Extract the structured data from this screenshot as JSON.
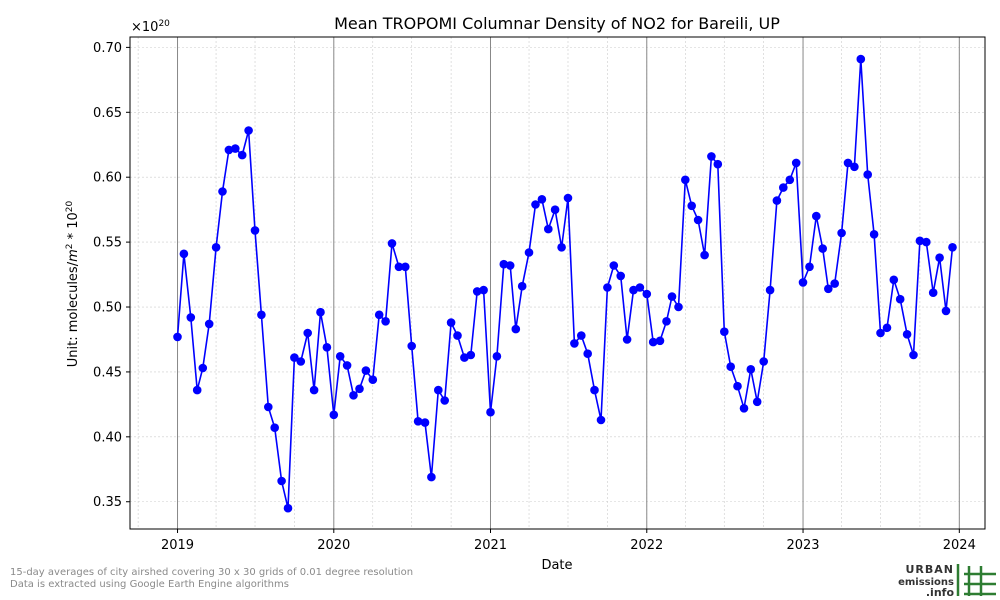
{
  "chart_data": {
    "type": "line",
    "title": "Mean TROPOMI Columnar Density of NO2 for Bareili, UP",
    "xlabel": "Date",
    "ylabel_prefix": "Unit: molecules/",
    "ylabel_m": "m",
    "ylabel_m_exp": "2",
    "ylabel_mid": " * 10",
    "ylabel_exp": "20",
    "offset_base": "×10",
    "offset_exp": "20",
    "xlim": [
      "2018-09-12",
      "2024-03-01"
    ],
    "ylim": [
      0.329,
      0.708
    ],
    "grid": true,
    "color": "#0000ff",
    "x_ticks": [
      "2019-01-01",
      "2020-01-01",
      "2021-01-01",
      "2022-01-01",
      "2023-01-01",
      "2024-01-01"
    ],
    "x_tick_labels": [
      "2019",
      "2020",
      "2021",
      "2022",
      "2023",
      "2024"
    ],
    "y_ticks": [
      0.35,
      0.4,
      0.45,
      0.5,
      0.55,
      0.6,
      0.65,
      0.7
    ],
    "y_tick_labels": [
      "0.35",
      "0.40",
      "0.45",
      "0.50",
      "0.55",
      "0.60",
      "0.65",
      "0.70"
    ],
    "series": [
      {
        "x": [
          "2019-01-01",
          "2019-01-16",
          "2019-02-01",
          "2019-02-16",
          "2019-03-01",
          "2019-03-16",
          "2019-04-01",
          "2019-04-16",
          "2019-05-01",
          "2019-05-16",
          "2019-06-01",
          "2019-06-16",
          "2019-07-01",
          "2019-07-16",
          "2019-08-01",
          "2019-08-16",
          "2019-09-01",
          "2019-09-16",
          "2019-10-01",
          "2019-10-16",
          "2019-11-01",
          "2019-11-16",
          "2019-12-01",
          "2019-12-16",
          "2020-01-01",
          "2020-01-16",
          "2020-02-01",
          "2020-02-16",
          "2020-03-01",
          "2020-03-16",
          "2020-04-01",
          "2020-04-16",
          "2020-05-01",
          "2020-05-16",
          "2020-06-01",
          "2020-06-16",
          "2020-07-01",
          "2020-07-16",
          "2020-08-01",
          "2020-08-16",
          "2020-09-01",
          "2020-09-16",
          "2020-10-01",
          "2020-10-16",
          "2020-11-01",
          "2020-11-16",
          "2020-12-01",
          "2020-12-16",
          "2021-01-01",
          "2021-01-16",
          "2021-02-01",
          "2021-02-16",
          "2021-03-01",
          "2021-03-16",
          "2021-04-01",
          "2021-04-16",
          "2021-05-01",
          "2021-05-16",
          "2021-06-01",
          "2021-06-16",
          "2021-07-01",
          "2021-07-16",
          "2021-08-01",
          "2021-08-16",
          "2021-09-01",
          "2021-09-16",
          "2021-10-01",
          "2021-10-16",
          "2021-11-01",
          "2021-11-16",
          "2021-12-01",
          "2021-12-16",
          "2022-01-01",
          "2022-01-16",
          "2022-02-01",
          "2022-02-16",
          "2022-03-01",
          "2022-03-16",
          "2022-04-01",
          "2022-04-16",
          "2022-05-01",
          "2022-05-16",
          "2022-06-01",
          "2022-06-16",
          "2022-07-01",
          "2022-07-16",
          "2022-08-01",
          "2022-08-16",
          "2022-09-01",
          "2022-09-16",
          "2022-10-01",
          "2022-10-16",
          "2022-11-01",
          "2022-11-16",
          "2022-12-01",
          "2022-12-16",
          "2023-01-01",
          "2023-01-16",
          "2023-02-01",
          "2023-02-16",
          "2023-03-01",
          "2023-03-16",
          "2023-04-01",
          "2023-04-16",
          "2023-05-01",
          "2023-05-16",
          "2023-06-01",
          "2023-06-16",
          "2023-07-01",
          "2023-07-16",
          "2023-08-01",
          "2023-08-16",
          "2023-09-01",
          "2023-09-16",
          "2023-10-01",
          "2023-10-16",
          "2023-11-01",
          "2023-11-16",
          "2023-12-01",
          "2023-12-16"
        ],
        "y": [
          0.477,
          0.541,
          0.492,
          0.436,
          0.453,
          0.487,
          0.546,
          0.589,
          0.621,
          0.622,
          0.617,
          0.636,
          0.559,
          0.494,
          0.423,
          0.407,
          0.366,
          0.345,
          0.461,
          0.458,
          0.48,
          0.436,
          0.496,
          0.469,
          0.417,
          0.462,
          0.455,
          0.432,
          0.437,
          0.451,
          0.444,
          0.494,
          0.489,
          0.549,
          0.531,
          0.531,
          0.47,
          0.412,
          0.411,
          0.369,
          0.436,
          0.428,
          0.488,
          0.478,
          0.461,
          0.463,
          0.512,
          0.513,
          0.419,
          0.462,
          0.533,
          0.532,
          0.483,
          0.516,
          0.542,
          0.579,
          0.583,
          0.56,
          0.575,
          0.546,
          0.584,
          0.472,
          0.478,
          0.464,
          0.436,
          0.413,
          0.515,
          0.532,
          0.524,
          0.475,
          0.513,
          0.515,
          0.51,
          0.473,
          0.474,
          0.489,
          0.508,
          0.5,
          0.598,
          0.578,
          0.567,
          0.54,
          0.616,
          0.61,
          0.481,
          0.454,
          0.439,
          0.422,
          0.452,
          0.427,
          0.458,
          0.513,
          0.582,
          0.592,
          0.598,
          0.611,
          0.519,
          0.531,
          0.57,
          0.545,
          0.514,
          0.518,
          0.557,
          0.611,
          0.608,
          0.691,
          0.602,
          0.556,
          0.48,
          0.484,
          0.521,
          0.506,
          0.479,
          0.463,
          0.551,
          0.55,
          0.511,
          0.538,
          0.497,
          0.546
        ]
      }
    ]
  },
  "footnotes": [
    "15-day averages of city airshed covering 30 x 30 grids of 0.01 degree resolution",
    "Data is extracted using Google Earth Engine algorithms"
  ],
  "logo": {
    "line1": "URBAN",
    "line2": "emissions",
    "line3": ".info",
    "accent": "#2e7d32"
  }
}
